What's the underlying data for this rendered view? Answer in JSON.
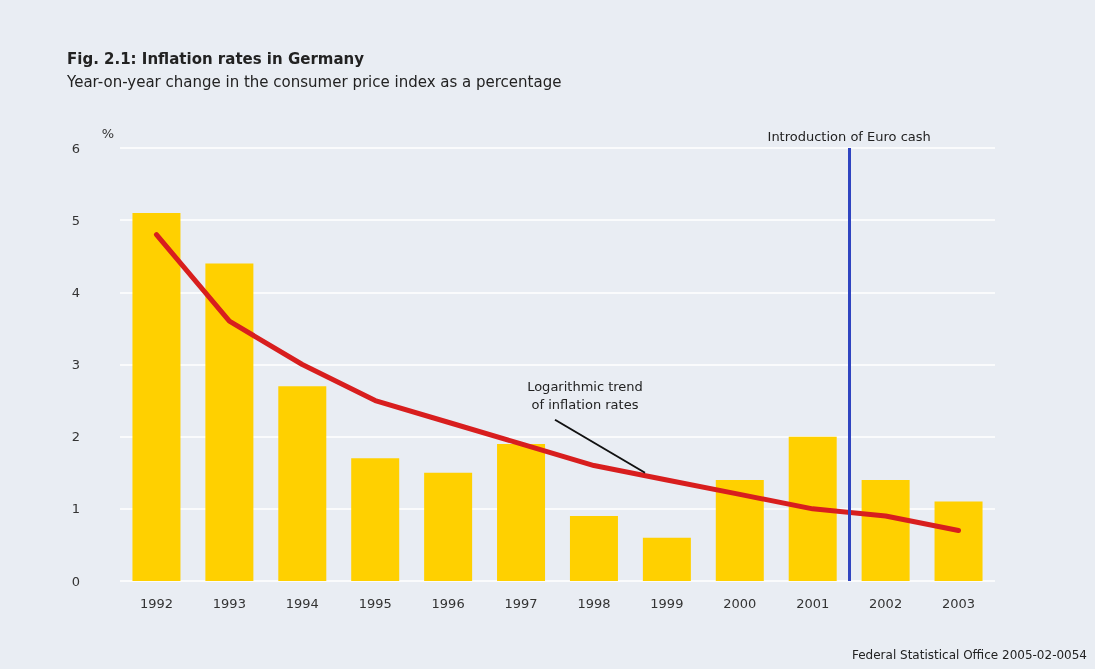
{
  "chart_data": {
    "type": "bar",
    "title": "Fig. 2.1: Inflation rates in Germany",
    "subtitle": "Year-on-year change in the consumer price index as a percentage",
    "ylabel": "%",
    "x": [
      1992,
      1993,
      1994,
      1995,
      1996,
      1997,
      1998,
      1999,
      2000,
      2001,
      2002,
      2003
    ],
    "xlim": [
      1991.5,
      2003.5
    ],
    "xticks": [
      1992,
      1993,
      1994,
      1995,
      1996,
      1997,
      1998,
      1999,
      2000,
      2001,
      2002,
      2003
    ],
    "ylim": [
      0,
      6
    ],
    "yticks": [
      0,
      1,
      2,
      3,
      4,
      5,
      6
    ],
    "grid": "y",
    "series": [
      {
        "color": "#ffd000",
        "values": [
          5.1,
          4.4,
          2.7,
          1.7,
          1.5,
          1.9,
          0.9,
          0.6,
          1.4,
          2.0,
          1.4,
          1.1
        ]
      },
      {
        "type": "line",
        "color": "#d81e1e",
        "marker": "none",
        "line_style": "solid",
        "x": [
          1992,
          1993,
          1994,
          1995,
          1996,
          1997,
          1998,
          1999,
          2000,
          2001,
          2002,
          2003
        ],
        "values": [
          4.8,
          3.6,
          3.0,
          2.5,
          2.2,
          1.9,
          1.6,
          1.4,
          1.2,
          1.0,
          0.9,
          0.7
        ]
      }
    ],
    "ref_lines": [
      {
        "axis": "x",
        "value": 2001.5,
        "label": "Introduction of Euro cash",
        "color": "#2f44c0",
        "line_style": "solid"
      }
    ],
    "annotations": [
      {
        "text": "Logarithmic trend\nof inflation rates",
        "x": 1998.7,
        "y": 1.5
      },
      "Federal Statistical Office 2005-02-0054"
    ]
  }
}
